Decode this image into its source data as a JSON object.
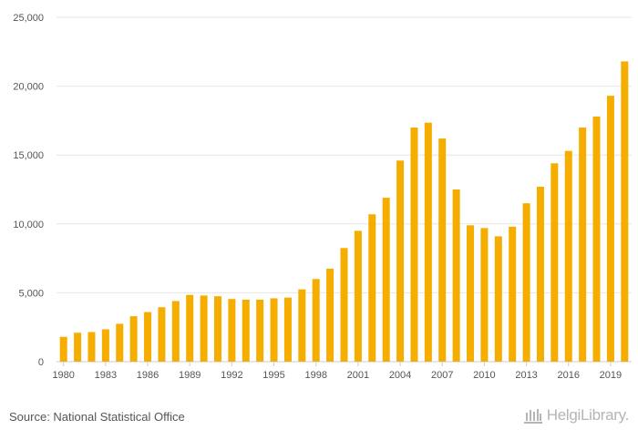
{
  "chart_data": {
    "type": "bar",
    "title": "",
    "xlabel": "",
    "ylabel": "",
    "ylim": [
      0,
      25000
    ],
    "yticks": [
      0,
      5000,
      10000,
      15000,
      20000,
      25000
    ],
    "ytick_labels": [
      "0",
      "5,000",
      "10,000",
      "15,000",
      "20,000",
      "25,000"
    ],
    "categories": [
      "1980",
      "1981",
      "1982",
      "1983",
      "1984",
      "1985",
      "1986",
      "1987",
      "1988",
      "1989",
      "1990",
      "1991",
      "1992",
      "1993",
      "1994",
      "1995",
      "1996",
      "1997",
      "1998",
      "1999",
      "2000",
      "2001",
      "2002",
      "2003",
      "2004",
      "2005",
      "2006",
      "2007",
      "2008",
      "2009",
      "2010",
      "2011",
      "2012",
      "2013",
      "2014",
      "2015",
      "2016",
      "2017",
      "2018",
      "2019",
      "2020"
    ],
    "xtick_labels": [
      "1980",
      "1983",
      "1986",
      "1989",
      "1992",
      "1995",
      "1998",
      "2001",
      "2004",
      "2007",
      "2010",
      "2013",
      "2016",
      "2019"
    ],
    "values": [
      1800,
      2100,
      2150,
      2350,
      2750,
      3300,
      3600,
      3950,
      4400,
      4850,
      4800,
      4750,
      4550,
      4500,
      4500,
      4600,
      4650,
      5250,
      6000,
      6750,
      8250,
      9500,
      10700,
      11900,
      14600,
      17000,
      17350,
      16200,
      12500,
      9900,
      9700,
      9100,
      9800,
      11500,
      12700,
      14400,
      15300,
      17000,
      17800,
      19300,
      21800
    ],
    "bar_color": "#f5ae00",
    "grid": true
  },
  "footer": {
    "source": "Source: National Statistical Office",
    "brand": "HelgiLibrary."
  }
}
